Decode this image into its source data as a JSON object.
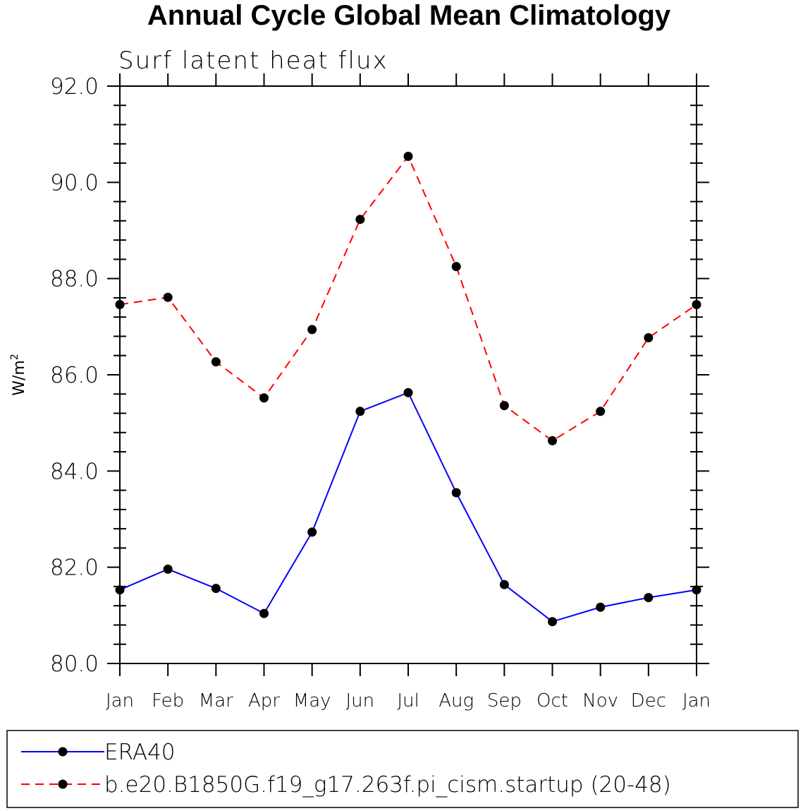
{
  "chart_data": {
    "type": "line",
    "title": "Annual Cycle Global Mean Climatology",
    "subtitle": "Surf latent heat flux",
    "ylabel": "W/m",
    "ylabel_sup": "2",
    "ylim": [
      80.0,
      92.0
    ],
    "yticks": [
      "80.0",
      "82.0",
      "84.0",
      "86.0",
      "88.0",
      "90.0",
      "92.0"
    ],
    "categories": [
      "Jan",
      "Feb",
      "Mar",
      "Apr",
      "May",
      "Jun",
      "Jul",
      "Aug",
      "Sep",
      "Oct",
      "Nov",
      "Dec",
      "Jan"
    ],
    "series": [
      {
        "name": "ERA40",
        "color": "#0000ff",
        "dash": "solid",
        "values": [
          81.53,
          81.96,
          81.56,
          81.04,
          82.73,
          85.24,
          85.63,
          83.55,
          81.64,
          80.87,
          81.17,
          81.37,
          81.53
        ]
      },
      {
        "name": "b.e20.B1850G.f19_g17.263f.pi_cism.startup (20-48)",
        "color": "#ff0000",
        "dash": "dashed",
        "values": [
          87.46,
          87.61,
          86.27,
          85.52,
          86.94,
          89.23,
          90.54,
          88.25,
          85.36,
          84.63,
          85.24,
          86.77,
          87.46
        ]
      }
    ]
  }
}
